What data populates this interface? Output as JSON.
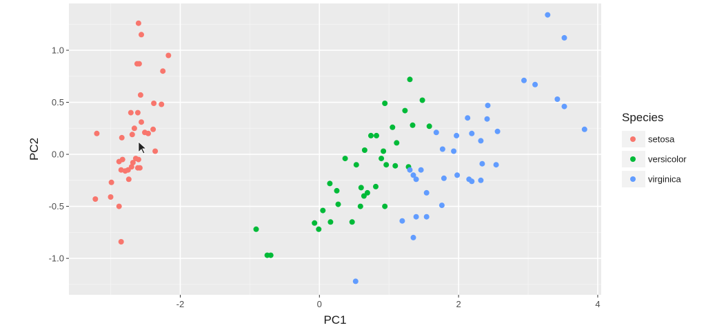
{
  "chart_data": {
    "type": "scatter",
    "xlabel": "PC1",
    "ylabel": "PC2",
    "xlim": [
      -3.6,
      4.05
    ],
    "ylim": [
      -1.35,
      1.45
    ],
    "x_ticks": [
      -2,
      0,
      2,
      4
    ],
    "y_ticks": [
      -1.0,
      -0.5,
      0.0,
      0.5,
      1.0
    ],
    "x_tick_labels": [
      "-2",
      "0",
      "2",
      "4"
    ],
    "y_tick_labels": [
      "-1.0",
      "-0.5",
      "0.0",
      "0.5",
      "1.0"
    ],
    "grid": true,
    "panel_background": "#ebebeb",
    "legend": {
      "title": "Species",
      "placement": "right",
      "entries": [
        "setosa",
        "versicolor",
        "virginica"
      ]
    },
    "series": [
      {
        "name": "setosa",
        "color": "#F8766D",
        "points": [
          [
            -2.6,
            1.26
          ],
          [
            -2.56,
            1.15
          ],
          [
            -2.17,
            0.95
          ],
          [
            -2.59,
            0.87
          ],
          [
            -2.62,
            0.87
          ],
          [
            -2.25,
            0.8
          ],
          [
            -2.57,
            0.57
          ],
          [
            -2.38,
            0.49
          ],
          [
            -2.27,
            0.48
          ],
          [
            -2.71,
            0.4
          ],
          [
            -2.61,
            0.4
          ],
          [
            -2.56,
            0.31
          ],
          [
            -2.66,
            0.25
          ],
          [
            -2.51,
            0.21
          ],
          [
            -2.39,
            0.24
          ],
          [
            -2.46,
            0.2
          ],
          [
            -3.2,
            0.2
          ],
          [
            -2.69,
            0.19
          ],
          [
            -2.84,
            0.16
          ],
          [
            -2.36,
            0.03
          ],
          [
            -2.64,
            -0.04
          ],
          [
            -2.83,
            -0.05
          ],
          [
            -2.6,
            -0.05
          ],
          [
            -2.68,
            -0.08
          ],
          [
            -2.88,
            -0.07
          ],
          [
            -2.7,
            -0.12
          ],
          [
            -2.58,
            -0.13
          ],
          [
            -2.61,
            -0.13
          ],
          [
            -2.85,
            -0.15
          ],
          [
            -2.75,
            -0.15
          ],
          [
            -2.79,
            -0.16
          ],
          [
            -2.74,
            -0.24
          ],
          [
            -2.99,
            -0.27
          ],
          [
            -3.0,
            -0.41
          ],
          [
            -3.22,
            -0.43
          ],
          [
            -2.88,
            -0.5
          ],
          [
            -2.85,
            -0.84
          ]
        ]
      },
      {
        "name": "versicolor",
        "color": "#00BA38",
        "points": [
          [
            1.3,
            0.72
          ],
          [
            0.94,
            0.49
          ],
          [
            1.48,
            0.52
          ],
          [
            1.23,
            0.42
          ],
          [
            1.05,
            0.26
          ],
          [
            1.34,
            0.28
          ],
          [
            1.58,
            0.27
          ],
          [
            0.74,
            0.18
          ],
          [
            0.82,
            0.18
          ],
          [
            1.11,
            0.11
          ],
          [
            0.65,
            0.04
          ],
          [
            0.92,
            0.03
          ],
          [
            0.37,
            -0.04
          ],
          [
            0.89,
            -0.04
          ],
          [
            0.53,
            -0.1
          ],
          [
            0.96,
            -0.1
          ],
          [
            1.09,
            -0.11
          ],
          [
            1.28,
            -0.12
          ],
          [
            0.81,
            -0.31
          ],
          [
            0.15,
            -0.28
          ],
          [
            0.6,
            -0.32
          ],
          [
            0.25,
            -0.35
          ],
          [
            0.64,
            -0.4
          ],
          [
            0.69,
            -0.37
          ],
          [
            0.27,
            -0.48
          ],
          [
            0.59,
            -0.5
          ],
          [
            0.94,
            -0.5
          ],
          [
            0.05,
            -0.54
          ],
          [
            0.47,
            -0.65
          ],
          [
            0.16,
            -0.65
          ],
          [
            -0.07,
            -0.66
          ],
          [
            -0.01,
            -0.72
          ],
          [
            -0.91,
            -0.72
          ],
          [
            -0.75,
            -0.97
          ],
          [
            -0.7,
            -0.97
          ]
        ]
      },
      {
        "name": "virginica",
        "color": "#619CFF",
        "points": [
          [
            3.28,
            1.34
          ],
          [
            3.52,
            1.12
          ],
          [
            2.94,
            0.71
          ],
          [
            3.1,
            0.67
          ],
          [
            3.42,
            0.53
          ],
          [
            3.52,
            0.46
          ],
          [
            2.42,
            0.47
          ],
          [
            3.81,
            0.24
          ],
          [
            2.41,
            0.34
          ],
          [
            2.13,
            0.35
          ],
          [
            2.56,
            0.22
          ],
          [
            1.68,
            0.21
          ],
          [
            2.19,
            0.2
          ],
          [
            1.97,
            0.18
          ],
          [
            2.32,
            0.13
          ],
          [
            1.77,
            0.05
          ],
          [
            1.93,
            0.03
          ],
          [
            1.3,
            -0.15
          ],
          [
            1.46,
            -0.15
          ],
          [
            2.34,
            -0.09
          ],
          [
            2.54,
            -0.1
          ],
          [
            1.35,
            -0.2
          ],
          [
            1.39,
            -0.24
          ],
          [
            1.79,
            -0.23
          ],
          [
            1.98,
            -0.2
          ],
          [
            2.15,
            -0.24
          ],
          [
            2.19,
            -0.26
          ],
          [
            2.32,
            -0.25
          ],
          [
            1.54,
            -0.37
          ],
          [
            1.76,
            -0.49
          ],
          [
            1.54,
            -0.6
          ],
          [
            1.39,
            -0.6
          ],
          [
            1.19,
            -0.64
          ],
          [
            1.35,
            -0.8
          ],
          [
            0.52,
            -1.22
          ]
        ]
      }
    ]
  }
}
